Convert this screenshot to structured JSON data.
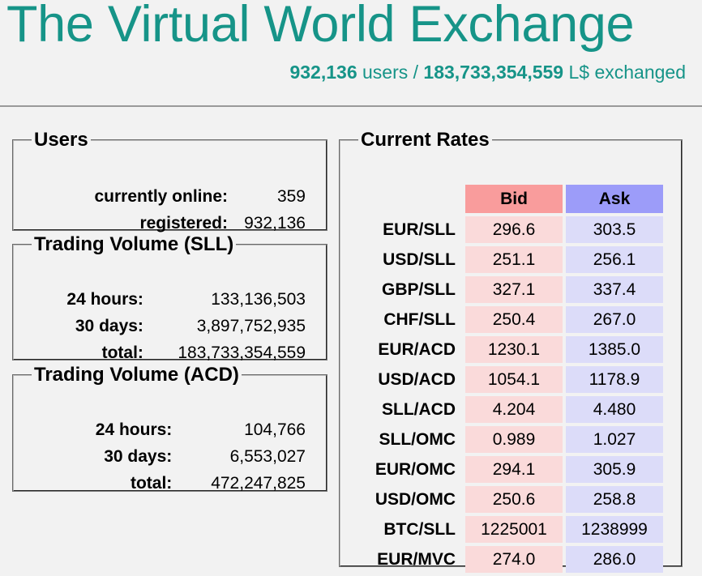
{
  "header": {
    "title": "The Virtual World Exchange",
    "users_count": "932,136",
    "users_label": "users /",
    "exchanged_amount": "183,733,354,559",
    "exchanged_label": "L$ exchanged"
  },
  "users_panel": {
    "legend": "Users",
    "rows": [
      {
        "label": "currently online:",
        "value": "359"
      },
      {
        "label": "registered:",
        "value": "932,136"
      }
    ]
  },
  "volume_sll": {
    "legend": "Trading Volume (SLL)",
    "rows": [
      {
        "label": "24 hours:",
        "value": "133,136,503"
      },
      {
        "label": "30 days:",
        "value": "3,897,752,935"
      },
      {
        "label": "total:",
        "value": "183,733,354,559"
      }
    ]
  },
  "volume_acd": {
    "legend": "Trading Volume (ACD)",
    "rows": [
      {
        "label": "24 hours:",
        "value": "104,766"
      },
      {
        "label": "30 days:",
        "value": "6,553,027"
      },
      {
        "label": "total:",
        "value": "472,247,825"
      }
    ]
  },
  "rates": {
    "legend": "Current Rates",
    "bid_header": "Bid",
    "ask_header": "Ask",
    "rows": [
      {
        "pair": "EUR/SLL",
        "bid": "296.6",
        "ask": "303.5"
      },
      {
        "pair": "USD/SLL",
        "bid": "251.1",
        "ask": "256.1"
      },
      {
        "pair": "GBP/SLL",
        "bid": "327.1",
        "ask": "337.4"
      },
      {
        "pair": "CHF/SLL",
        "bid": "250.4",
        "ask": "267.0"
      },
      {
        "pair": "EUR/ACD",
        "bid": "1230.1",
        "ask": "1385.0"
      },
      {
        "pair": "USD/ACD",
        "bid": "1054.1",
        "ask": "1178.9"
      },
      {
        "pair": "SLL/ACD",
        "bid": "4.204",
        "ask": "4.480"
      },
      {
        "pair": "SLL/OMC",
        "bid": "0.989",
        "ask": "1.027"
      },
      {
        "pair": "EUR/OMC",
        "bid": "294.1",
        "ask": "305.9"
      },
      {
        "pair": "USD/OMC",
        "bid": "250.6",
        "ask": "258.8"
      },
      {
        "pair": "BTC/SLL",
        "bid": "1225001",
        "ask": "1238999"
      },
      {
        "pair": "EUR/MVC",
        "bid": "274.0",
        "ask": "286.0"
      }
    ]
  },
  "colors": {
    "brand": "#169488",
    "bid_header": "#f99c9c",
    "ask_header": "#9c9cf9",
    "bid_cell": "#fadada",
    "ask_cell": "#dcdcf9"
  }
}
